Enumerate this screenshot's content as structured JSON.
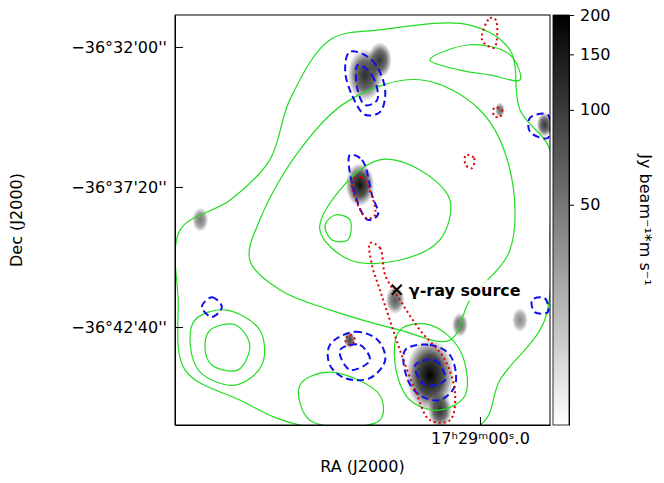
{
  "chart_data": {
    "type": "contour",
    "xlabel": "RA (J2000)",
    "ylabel": "Dec (J2000)",
    "xlim": [
      62997.9,
      62926.7
    ],
    "ylim": [
      -132384,
      -131447
    ],
    "xticks": [
      {
        "value": 62940,
        "label": "17ʰ29ᵐ00ˢ.0"
      }
    ],
    "yticks": [
      {
        "value": -131520,
        "label": "−36°32'00''"
      },
      {
        "value": -131840,
        "label": "−36°37'20''"
      },
      {
        "value": -132160,
        "label": "−36°42'40''"
      }
    ],
    "colorbar": {
      "label": "Jy beam⁻¹*m s⁻¹",
      "range": [
        10,
        200
      ],
      "ticks": [
        50,
        100,
        150,
        200
      ],
      "log": true
    },
    "image": [
      {
        "ra": 62961.8,
        "dec": -131584,
        "value": 120,
        "radius": 50
      },
      {
        "ra": 62959.0,
        "dec": -131550,
        "value": 110,
        "radius": 34
      },
      {
        "ra": 62962.8,
        "dec": -131835,
        "value": 170,
        "radius": 41
      },
      {
        "ra": 62949.5,
        "dec": -132270,
        "value": 200,
        "radius": 69
      },
      {
        "ra": 62956.1,
        "dec": -132098,
        "value": 70,
        "radius": 27
      },
      {
        "ra": 62947.6,
        "dec": -132350,
        "value": 120,
        "radius": 34
      },
      {
        "ra": 62927.7,
        "dec": -131698,
        "value": 110,
        "radius": 23
      },
      {
        "ra": 62936.2,
        "dec": -131664,
        "value": 60,
        "radius": 14
      },
      {
        "ra": 62993.1,
        "dec": -131915,
        "value": 50,
        "radius": 23
      },
      {
        "ra": 62964.7,
        "dec": -132190,
        "value": 100,
        "radius": 16
      },
      {
        "ra": 62943.8,
        "dec": -132155,
        "value": 60,
        "radius": 23
      },
      {
        "ra": 62932.4,
        "dec": -132144,
        "value": 40,
        "radius": 23
      }
    ],
    "series": [
      {
        "color": "#22dd22",
        "line_style": "solid",
        "contours": [
          [
            [
              62996.9,
              -131938
            ],
            [
              62987.4,
              -131870
            ],
            [
              62979.9,
              -131778
            ],
            [
              62976.1,
              -131641
            ],
            [
              62968.5,
              -131504
            ],
            [
              62959.0,
              -131481
            ],
            [
              62941.9,
              -131470
            ],
            [
              62934.3,
              -131527
            ],
            [
              62932.4,
              -131664
            ],
            [
              62926.7,
              -131755
            ],
            [
              62926.7,
              -131938
            ],
            [
              62927.7,
              -132144
            ],
            [
              62936.2,
              -132281
            ],
            [
              62940.0,
              -132384
            ],
            [
              62974.2,
              -132384
            ],
            [
              62985.6,
              -132327
            ],
            [
              62996.0,
              -132258
            ],
            [
              62997.3,
              -132098
            ]
          ],
          [
            [
              62981.8,
              -131915
            ],
            [
              62974.2,
              -131755
            ],
            [
              62964.7,
              -131641
            ],
            [
              62951.4,
              -131595
            ],
            [
              62940.0,
              -131664
            ],
            [
              62934.3,
              -131801
            ],
            [
              62934.3,
              -131984
            ],
            [
              62941.9,
              -132098
            ],
            [
              62945.7,
              -132190
            ],
            [
              62955.2,
              -132167
            ],
            [
              62968.5,
              -132121
            ],
            [
              62978.0,
              -132075
            ],
            [
              62983.7,
              -132007
            ]
          ],
          [
            [
              62970.4,
              -131938
            ],
            [
              62966.6,
              -131847
            ],
            [
              62959.0,
              -131778
            ],
            [
              62951.4,
              -131801
            ],
            [
              62945.7,
              -131870
            ],
            [
              62947.6,
              -131961
            ],
            [
              62955.2,
              -132007
            ],
            [
              62964.7,
              -132007
            ]
          ],
          [
            [
              62969.4,
              -131927
            ],
            [
              62967.5,
              -131904
            ],
            [
              62964.7,
              -131915
            ],
            [
              62965.1,
              -131961
            ],
            [
              62968.1,
              -131961
            ]
          ],
          [
            [
              62994.1,
              -132144
            ],
            [
              62988.4,
              -132121
            ],
            [
              62981.8,
              -132167
            ],
            [
              62981.4,
              -132247
            ],
            [
              62986.5,
              -132293
            ],
            [
              62993.1,
              -132263
            ],
            [
              62995.0,
              -132201
            ]
          ],
          [
            [
              62991.2,
              -132167
            ],
            [
              62986.5,
              -132155
            ],
            [
              62983.7,
              -132201
            ],
            [
              62985.9,
              -132258
            ],
            [
              62990.9,
              -132247
            ],
            [
              62992.2,
              -132208
            ]
          ],
          [
            [
              62955.2,
              -132167
            ],
            [
              62949.5,
              -132155
            ],
            [
              62943.8,
              -132213
            ],
            [
              62942.8,
              -132316
            ],
            [
              62947.6,
              -132350
            ],
            [
              62953.3,
              -132327
            ],
            [
              62956.1,
              -132247
            ]
          ],
          [
            [
              62949.5,
              -131550
            ],
            [
              62941.9,
              -131515
            ],
            [
              62934.3,
              -131538
            ],
            [
              62932.4,
              -131595
            ],
            [
              62938.1,
              -131584
            ],
            [
              62943.8,
              -131573
            ]
          ],
          [
            [
              62974.2,
              -132293
            ],
            [
              62968.5,
              -132263
            ],
            [
              62959.0,
              -132316
            ],
            [
              62959.0,
              -132373
            ],
            [
              62972.3,
              -132373
            ]
          ]
        ]
      },
      {
        "color": "#1010ee",
        "line_style": "dashed",
        "contours": [
          [
            [
              62964.7,
              -131531
            ],
            [
              62960.5,
              -131550
            ],
            [
              62958.0,
              -131618
            ],
            [
              62959.0,
              -131669
            ],
            [
              62961.8,
              -131675
            ],
            [
              62964.3,
              -131630
            ],
            [
              62965.6,
              -131573
            ]
          ],
          [
            [
              62963.2,
              -131561
            ],
            [
              62960.5,
              -131584
            ],
            [
              62959.5,
              -131641
            ],
            [
              62961.8,
              -131653
            ],
            [
              62963.3,
              -131614
            ]
          ],
          [
            [
              62964.7,
              -131767
            ],
            [
              62962.4,
              -131778
            ],
            [
              62960.5,
              -131858
            ],
            [
              62959.4,
              -131904
            ],
            [
              62961.3,
              -131915
            ],
            [
              62963.7,
              -131858
            ]
          ],
          [
            [
              62930.5,
              -131682
            ],
            [
              62927.1,
              -131675
            ],
            [
              62927.1,
              -131728
            ],
            [
              62930.5,
              -131714
            ]
          ],
          [
            [
              62992.8,
              -132114
            ],
            [
              62990.9,
              -132092
            ],
            [
              62989.0,
              -132114
            ],
            [
              62990.9,
              -132137
            ]
          ],
          [
            [
              62968.5,
              -132201
            ],
            [
              62963.7,
              -132171
            ],
            [
              62959.4,
              -132190
            ],
            [
              62958.0,
              -132236
            ],
            [
              62960.9,
              -132277
            ],
            [
              62965.6,
              -132277
            ],
            [
              62968.5,
              -132247
            ]
          ],
          [
            [
              62966.6,
              -132213
            ],
            [
              62962.8,
              -132201
            ],
            [
              62960.9,
              -132236
            ],
            [
              62964.7,
              -132258
            ]
          ],
          [
            [
              62954.2,
              -132213
            ],
            [
              62949.5,
              -132201
            ],
            [
              62945.7,
              -132224
            ],
            [
              62944.7,
              -132293
            ],
            [
              62947.6,
              -132327
            ],
            [
              62951.4,
              -132316
            ],
            [
              62953.7,
              -132281
            ]
          ],
          [
            [
              62952.3,
              -132247
            ],
            [
              62948.5,
              -132236
            ],
            [
              62946.6,
              -132281
            ],
            [
              62950.4,
              -132293
            ]
          ],
          [
            [
              62930.1,
              -132098
            ],
            [
              62927.7,
              -132094
            ],
            [
              62927.1,
              -132126
            ],
            [
              62929.6,
              -132126
            ]
          ]
        ]
      },
      {
        "color": "#dd0000",
        "line_style": "dotted",
        "contours": [
          [
            [
              62960.9,
              -131968
            ],
            [
              62959.0,
              -131979
            ],
            [
              62958.0,
              -132041
            ],
            [
              62955.2,
              -132098
            ],
            [
              62951.4,
              -132167
            ],
            [
              62946.6,
              -132236
            ],
            [
              62944.7,
              -132316
            ],
            [
              62945.7,
              -132373
            ],
            [
              62949.5,
              -132373
            ],
            [
              62952.3,
              -132304
            ],
            [
              62955.2,
              -132213
            ],
            [
              62957.1,
              -132144
            ],
            [
              62959.0,
              -132075
            ],
            [
              62960.5,
              -132018
            ]
          ],
          [
            [
              62939.6,
              -131504
            ],
            [
              62938.1,
              -131454
            ],
            [
              62937.0,
              -131458
            ],
            [
              62937.3,
              -131522
            ]
          ],
          [
            [
              62942.7,
              -131767
            ],
            [
              62941.1,
              -131774
            ],
            [
              62941.5,
              -131797
            ],
            [
              62942.7,
              -131790
            ]
          ],
          [
            [
              62964.3,
              -131824
            ],
            [
              62962.4,
              -131819
            ],
            [
              62959.9,
              -131904
            ],
            [
              62961.6,
              -131911
            ]
          ],
          [
            [
              62965.6,
              -132190
            ],
            [
              62964.7,
              -132178
            ],
            [
              62963.7,
              -132190
            ],
            [
              62964.7,
              -132201
            ]
          ],
          [
            [
              62937.3,
              -131659
            ],
            [
              62935.8,
              -131664
            ],
            [
              62936.2,
              -131680
            ],
            [
              62937.3,
              -131678
            ]
          ]
        ]
      }
    ],
    "annotations": [
      {
        "text": "γ-ray source",
        "x": 62955.8,
        "y": -132075,
        "marker": "x"
      }
    ]
  }
}
